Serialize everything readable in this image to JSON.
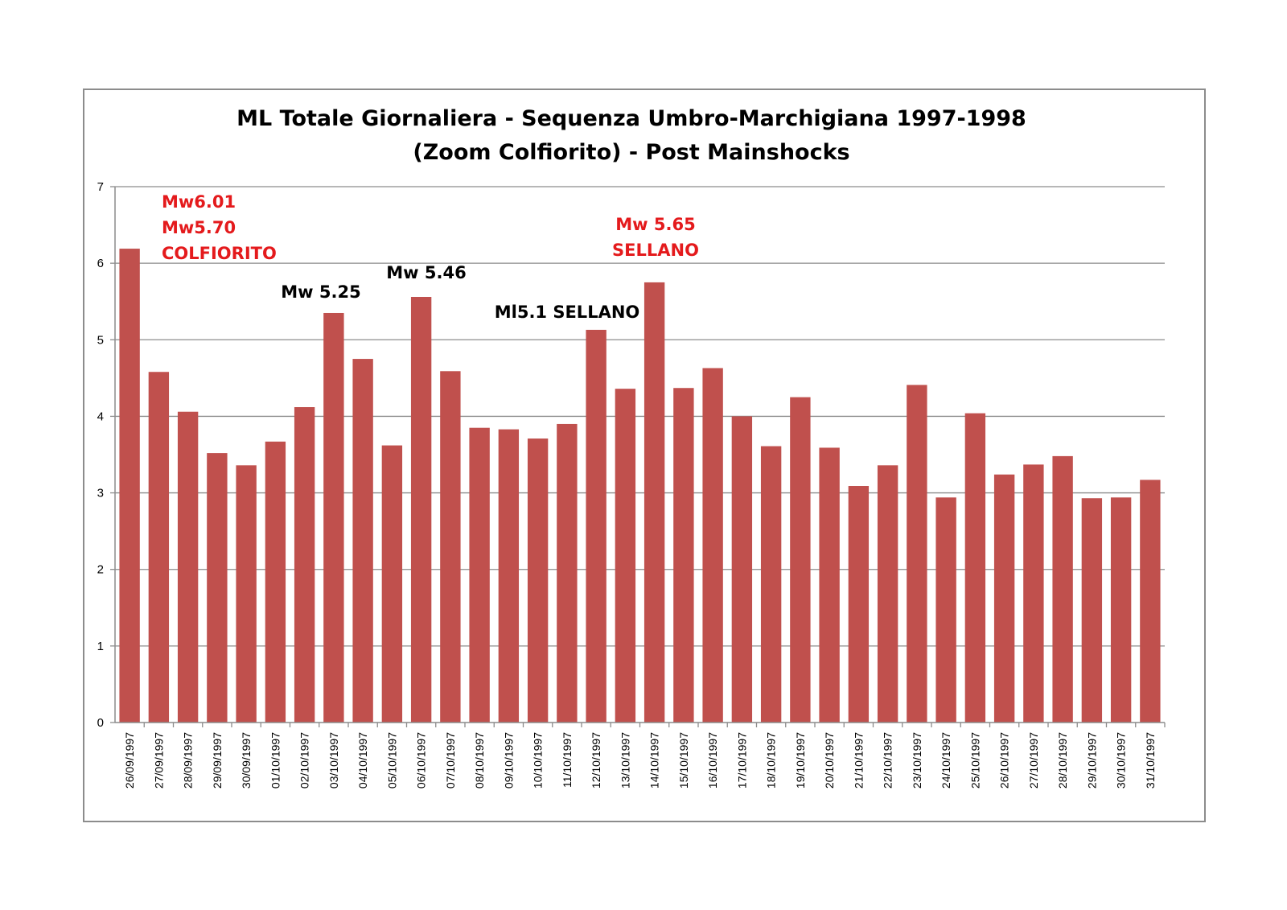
{
  "chart_data": {
    "type": "bar",
    "title": [
      "ML Totale Giornaliera - Sequenza Umbro-Marchigiana 1997-1998",
      "(Zoom Colfiorito) - Post Mainshocks"
    ],
    "bar_color": "#c0504d",
    "grid": true,
    "ylim": [
      0,
      7
    ],
    "yticks": [
      0,
      1,
      2,
      3,
      4,
      5,
      6,
      7
    ],
    "categories": [
      "26/09/1997",
      "27/09/1997",
      "28/09/1997",
      "29/09/1997",
      "30/09/1997",
      "01/10/1997",
      "02/10/1997",
      "03/10/1997",
      "04/10/1997",
      "05/10/1997",
      "06/10/1997",
      "07/10/1997",
      "08/10/1997",
      "09/10/1997",
      "10/10/1997",
      "11/10/1997",
      "12/10/1997",
      "13/10/1997",
      "14/10/1997",
      "15/10/1997",
      "16/10/1997",
      "17/10/1997",
      "18/10/1997",
      "19/10/1997",
      "20/10/1997",
      "21/10/1997",
      "22/10/1997",
      "23/10/1997",
      "24/10/1997",
      "25/10/1997",
      "26/10/1997",
      "27/10/1997",
      "28/10/1997",
      "29/10/1997",
      "30/10/1997",
      "31/10/1997"
    ],
    "values": [
      6.19,
      4.58,
      4.06,
      3.52,
      3.36,
      3.67,
      4.12,
      5.35,
      4.75,
      3.62,
      5.56,
      4.59,
      3.85,
      3.83,
      3.71,
      3.9,
      5.13,
      4.36,
      5.75,
      4.37,
      4.63,
      4.0,
      3.61,
      4.25,
      3.59,
      3.09,
      3.36,
      4.41,
      2.94,
      4.04,
      3.24,
      3.37,
      3.48,
      2.93,
      2.94,
      3.17
    ],
    "annotations": [
      {
        "lines": [
          "Mw6.01",
          "Mw5.70",
          "COLFIORITO"
        ],
        "color": "#e41a1c",
        "category": "27/09/1997"
      },
      {
        "lines": [
          "Mw 5.25"
        ],
        "color": "#000000",
        "category": "03/10/1997"
      },
      {
        "lines": [
          "Mw 5.46"
        ],
        "color": "#000000",
        "category": "06/10/1997"
      },
      {
        "lines": [
          "Ml5.1 SELLANO"
        ],
        "color": "#000000",
        "category": "12/10/1997"
      },
      {
        "lines": [
          "Mw 5.65",
          "SELLANO"
        ],
        "color": "#e41a1c",
        "category": "14/10/1997"
      }
    ]
  }
}
